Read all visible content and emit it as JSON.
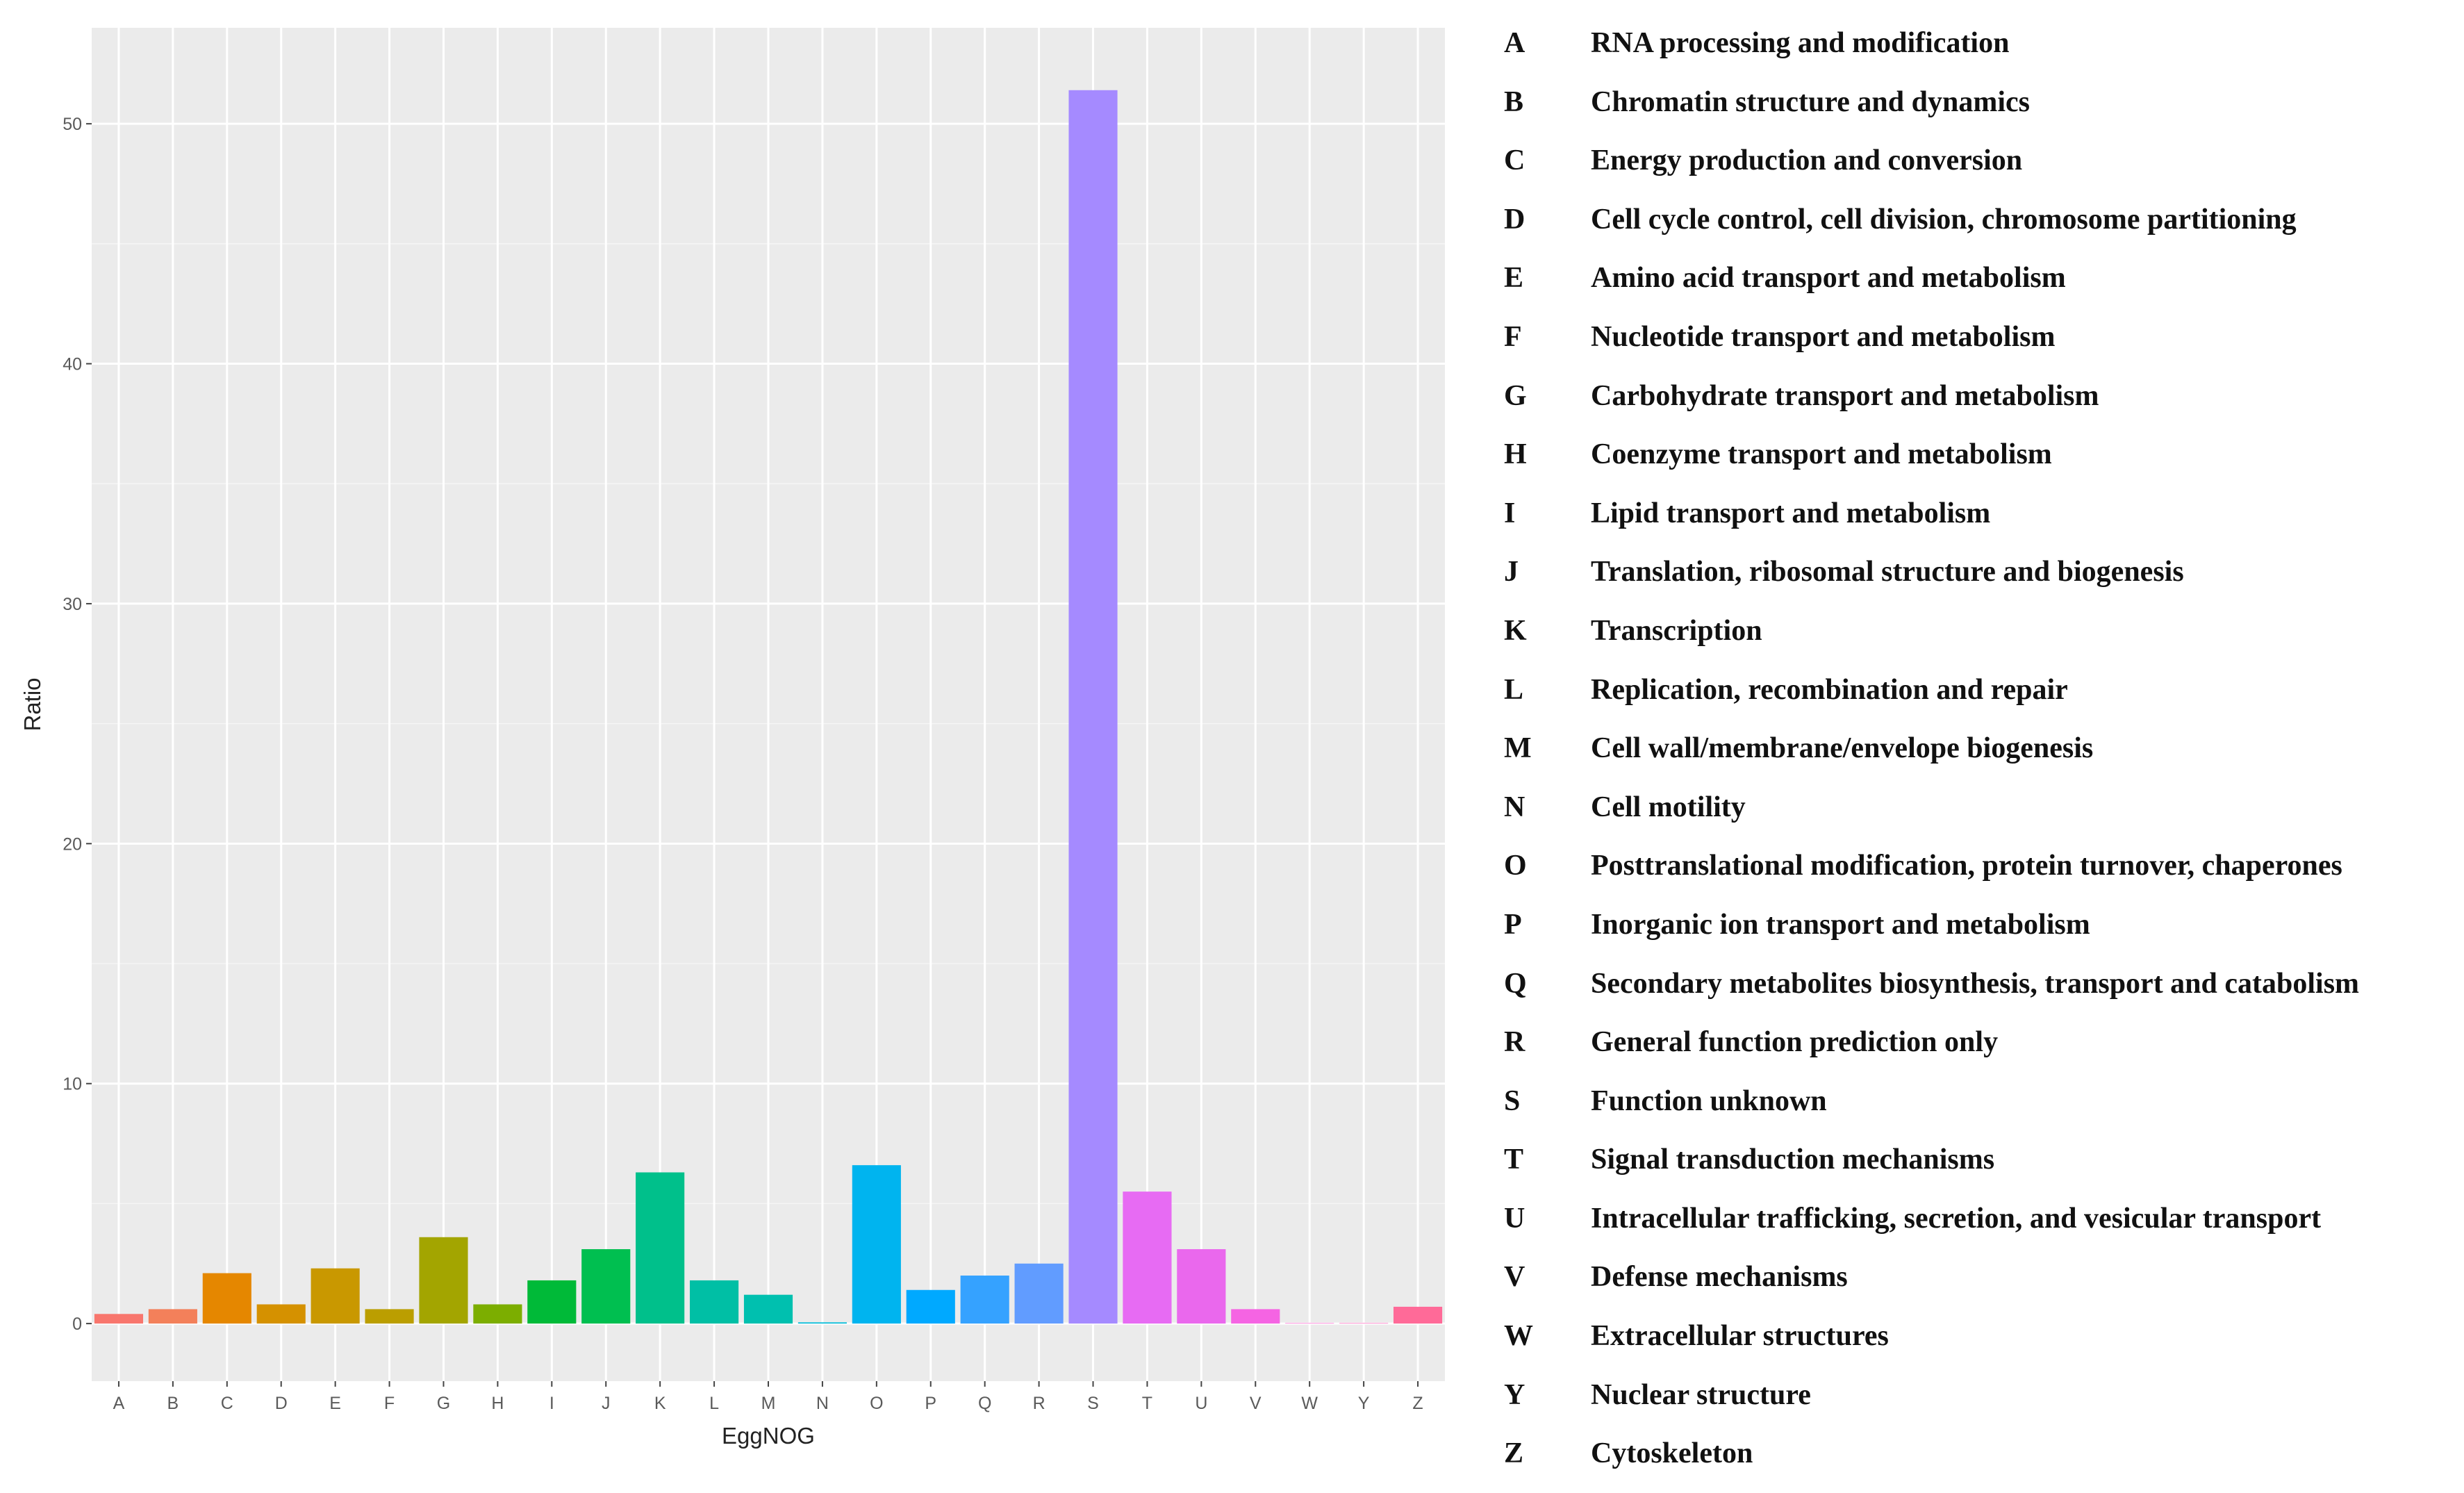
{
  "chart_data": {
    "type": "bar",
    "title": "",
    "xlabel": "EggNOG",
    "ylabel": "Ratio",
    "ylim": [
      -2.4,
      54
    ],
    "yticks": [
      0,
      10,
      20,
      30,
      40,
      50
    ],
    "grid": true,
    "categories": [
      "A",
      "B",
      "C",
      "D",
      "E",
      "F",
      "G",
      "H",
      "I",
      "J",
      "K",
      "L",
      "M",
      "N",
      "O",
      "P",
      "Q",
      "R",
      "S",
      "T",
      "U",
      "V",
      "W",
      "Y",
      "Z"
    ],
    "values": [
      0.4,
      0.6,
      2.1,
      0.8,
      2.3,
      0.6,
      3.6,
      0.8,
      1.8,
      3.1,
      6.3,
      1.8,
      1.2,
      0.05,
      6.6,
      1.4,
      2.0,
      2.5,
      51.4,
      5.5,
      3.1,
      0.6,
      0.02,
      0.02,
      0.7
    ],
    "colors": [
      "#F8766D",
      "#F3805A",
      "#E58700",
      "#D59100",
      "#C99800",
      "#BB9E00",
      "#A3A500",
      "#7CAE00",
      "#00BA38",
      "#00BF50",
      "#00C08B",
      "#00BFA5",
      "#00C0AF",
      "#00BCD8",
      "#00B4EF",
      "#00A9FF",
      "#35A2FF",
      "#619CFF",
      "#A58AFF",
      "#E76BF3",
      "#EA68ED",
      "#F564E3",
      "#FD61D1",
      "#FF62BC",
      "#FF6A98"
    ]
  },
  "legend": [
    {
      "code": "A",
      "desc": "RNA processing and modification"
    },
    {
      "code": "B",
      "desc": "Chromatin structure and dynamics"
    },
    {
      "code": "C",
      "desc": "Energy production and conversion"
    },
    {
      "code": "D",
      "desc": "Cell cycle control, cell division, chromosome partitioning"
    },
    {
      "code": "E",
      "desc": "Amino acid transport and metabolism"
    },
    {
      "code": "F",
      "desc": "Nucleotide transport and metabolism"
    },
    {
      "code": "G",
      "desc": "Carbohydrate transport and metabolism"
    },
    {
      "code": "H",
      "desc": "Coenzyme transport and metabolism"
    },
    {
      "code": "I",
      "desc": "Lipid transport and metabolism"
    },
    {
      "code": "J",
      "desc": "Translation, ribosomal structure and biogenesis"
    },
    {
      "code": "K",
      "desc": "Transcription"
    },
    {
      "code": "L",
      "desc": "Replication, recombination and repair"
    },
    {
      "code": "M",
      "desc": "Cell wall/membrane/envelope biogenesis"
    },
    {
      "code": "N",
      "desc": "Cell motility"
    },
    {
      "code": "O",
      "desc": "Posttranslational modification, protein turnover, chaperones"
    },
    {
      "code": "P",
      "desc": "Inorganic ion transport and metabolism"
    },
    {
      "code": "Q",
      "desc": "Secondary metabolites biosynthesis, transport and catabolism"
    },
    {
      "code": "R",
      "desc": "General function prediction only"
    },
    {
      "code": "S",
      "desc": "Function unknown"
    },
    {
      "code": "T",
      "desc": "Signal transduction mechanisms"
    },
    {
      "code": "U",
      "desc": "Intracellular trafficking, secretion, and vesicular transport"
    },
    {
      "code": "V",
      "desc": "Defense mechanisms"
    },
    {
      "code": "W",
      "desc": "Extracellular structures"
    },
    {
      "code": "Y",
      "desc": "Nuclear structure"
    },
    {
      "code": "Z",
      "desc": "Cytoskeleton"
    }
  ]
}
